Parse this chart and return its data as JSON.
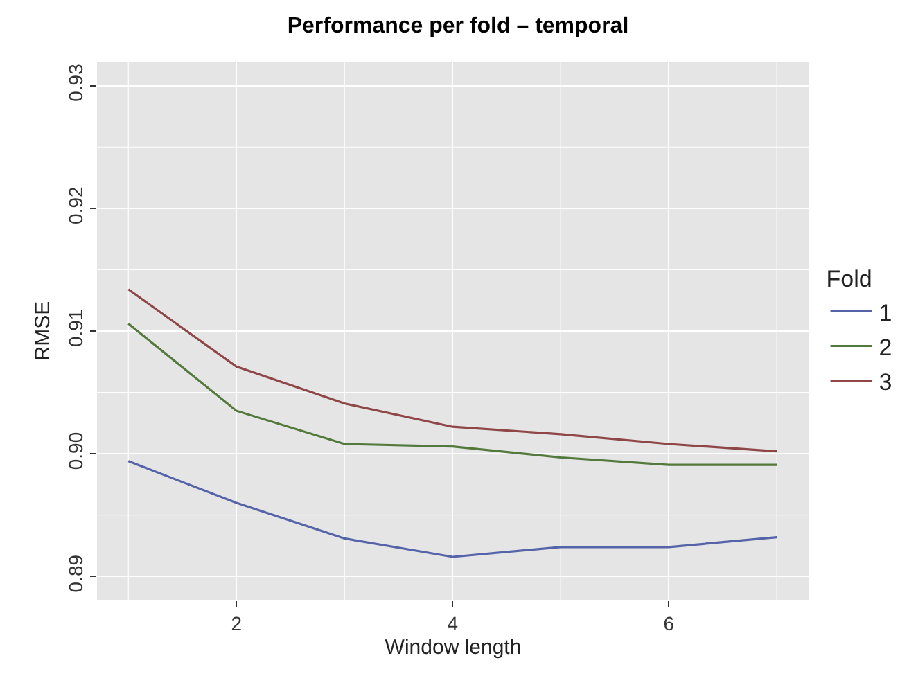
{
  "chart_data": {
    "type": "line",
    "title": "Performance per fold – temporal",
    "xlabel": "Window length",
    "ylabel": "RMSE",
    "legend_title": "Fold",
    "x": [
      1,
      2,
      3,
      4,
      5,
      6,
      7
    ],
    "series": [
      {
        "name": "1",
        "color": "#5563a8",
        "values": [
          0.8994,
          0.896,
          0.8931,
          0.8916,
          0.8924,
          0.8924,
          0.8932
        ]
      },
      {
        "name": "2",
        "color": "#537a3c",
        "values": [
          0.9106,
          0.9035,
          0.9008,
          0.9006,
          0.8997,
          0.8991,
          0.8991
        ]
      },
      {
        "name": "3",
        "color": "#8e4646",
        "values": [
          0.9134,
          0.9071,
          0.9041,
          0.9022,
          0.9016,
          0.9008,
          0.9002
        ]
      }
    ],
    "xlim": [
      0.71,
      7.3
    ],
    "ylim": [
      0.8881,
      0.9319
    ],
    "xticks": [
      2,
      4,
      6
    ],
    "yticks": [
      {
        "value": 0.89,
        "label": "0.89"
      },
      {
        "value": 0.9,
        "label": "0.90"
      },
      {
        "value": 0.91,
        "label": "0.91"
      },
      {
        "value": 0.92,
        "label": "0.92"
      },
      {
        "value": 0.93,
        "label": "0.93"
      }
    ],
    "grid": true,
    "legend": "right",
    "marker": "none",
    "line_style": "solid"
  }
}
